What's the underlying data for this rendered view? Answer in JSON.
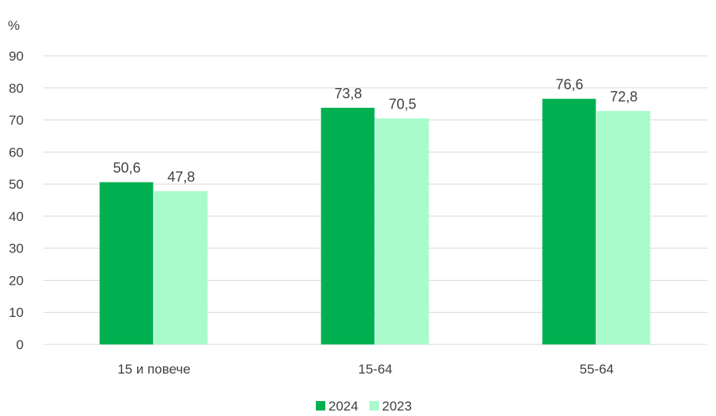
{
  "chart_data": {
    "type": "bar",
    "unit_label": "%",
    "categories": [
      "15 и повече",
      "15-64",
      "55-64"
    ],
    "series": [
      {
        "name": "2024",
        "color": "#00b050",
        "values": [
          50.6,
          73.8,
          76.6
        ],
        "labels": [
          "50,6",
          "73,8",
          "76,6"
        ]
      },
      {
        "name": "2023",
        "color": "#a9fbcc",
        "values": [
          47.8,
          70.5,
          72.8
        ],
        "labels": [
          "47,8",
          "70,5",
          "72,8"
        ]
      }
    ],
    "ylim": [
      0,
      90
    ],
    "yticks": [
      "0",
      "10",
      "20",
      "30",
      "40",
      "50",
      "60",
      "70",
      "80",
      "90"
    ],
    "grid": true,
    "legend_position": "bottom"
  }
}
